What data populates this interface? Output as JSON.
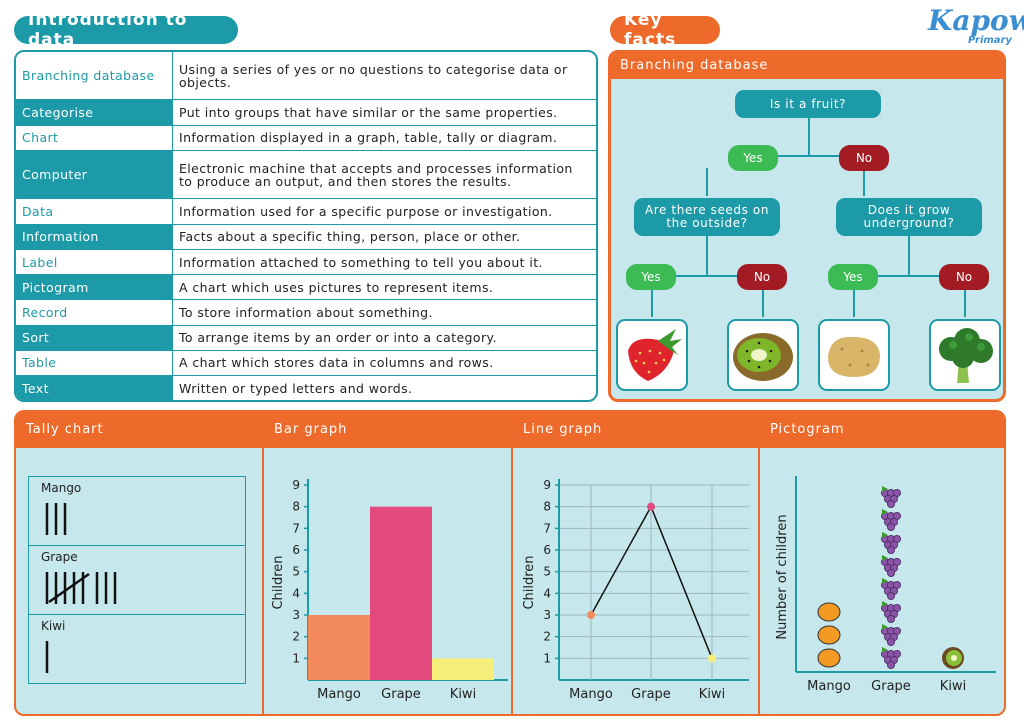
{
  "header": {
    "intro_title": "Introduction to data",
    "key_title": "Key facts",
    "logo_main": "Kapow",
    "logo_sub": "Primary"
  },
  "glossary": [
    {
      "term": "Branching database",
      "definition": "Using a series of yes or no questions to categorise data or objects."
    },
    {
      "term": "Categorise",
      "definition": "Put into groups that have similar or the same properties."
    },
    {
      "term": "Chart",
      "definition": "Information displayed in a graph, table, tally or diagram."
    },
    {
      "term": "Computer",
      "definition": "Electronic machine that accepts and processes information to produce an output, and then stores the results."
    },
    {
      "term": "Data",
      "definition": "Information used for a specific purpose or investigation."
    },
    {
      "term": "Information",
      "definition": "Facts about a specific thing, person, place or other."
    },
    {
      "term": "Label",
      "definition": "Information attached to something to tell you about it."
    },
    {
      "term": "Pictogram",
      "definition": "A chart which uses pictures to represent items."
    },
    {
      "term": "Record",
      "definition": "To store information about something."
    },
    {
      "term": "Sort",
      "definition": "To arrange items by an order or into a category."
    },
    {
      "term": "Table",
      "definition": "A chart which stores data in columns and rows."
    },
    {
      "term": "Text",
      "definition": "Written or typed letters and words."
    }
  ],
  "branching": {
    "title": "Branching database",
    "root": "Is it a fruit?",
    "yes": "Yes",
    "no": "No",
    "left_q": "Are there seeds on the outside?",
    "right_q": "Does it grow underground?",
    "leaves": [
      "strawberry",
      "kiwi",
      "potato",
      "broccoli"
    ]
  },
  "sections": {
    "tally": "Tally chart",
    "bar": "Bar graph",
    "line": "Line graph",
    "picto": "Pictogram"
  },
  "chart_data": [
    {
      "type": "table",
      "title": "Tally chart",
      "categories": [
        "Mango",
        "Grape",
        "Kiwi"
      ],
      "values": [
        3,
        8,
        1
      ]
    },
    {
      "type": "bar",
      "title": "Bar graph",
      "categories": [
        "Mango",
        "Grape",
        "Kiwi"
      ],
      "values": [
        3,
        8,
        1
      ],
      "colors": [
        "#f28a5b",
        "#e24a7e",
        "#f5ee7a"
      ],
      "ylabel": "Children",
      "ylim": [
        0,
        9
      ],
      "yticks": [
        1,
        2,
        3,
        4,
        5,
        6,
        7,
        8,
        9
      ]
    },
    {
      "type": "line",
      "title": "Line graph",
      "categories": [
        "Mango",
        "Grape",
        "Kiwi"
      ],
      "values": [
        3,
        8,
        1
      ],
      "point_colors": [
        "#f28a5b",
        "#e24a7e",
        "#f5ee7a"
      ],
      "ylabel": "Children",
      "ylim": [
        0,
        9
      ],
      "yticks": [
        1,
        2,
        3,
        4,
        5,
        6,
        7,
        8,
        9
      ],
      "grid": true
    },
    {
      "type": "bar",
      "title": "Pictogram",
      "categories": [
        "Mango",
        "Grape",
        "Kiwi"
      ],
      "values": [
        3,
        8,
        1
      ],
      "icons": [
        "mango-icon",
        "grape-icon",
        "kiwi-icon"
      ],
      "ylabel": "Number of children"
    }
  ],
  "colors": {
    "teal": "#1d9aa8",
    "orange": "#ee6a2a",
    "light_blue": "#c6e8ec",
    "yes_green": "#3cba54",
    "no_red": "#a31c24"
  }
}
